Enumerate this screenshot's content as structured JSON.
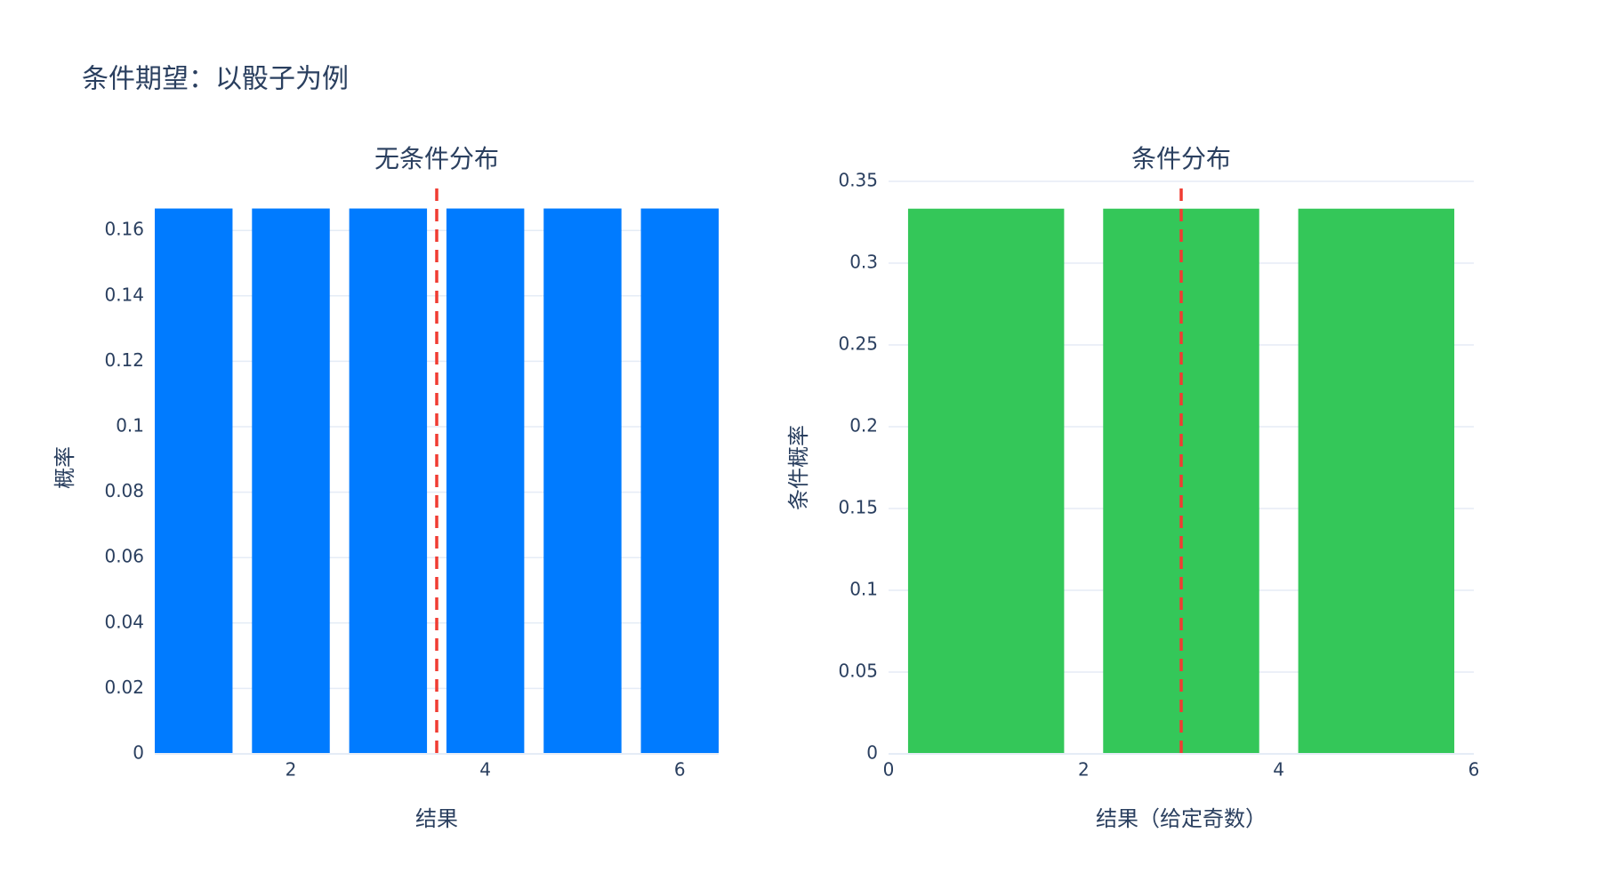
{
  "title": "条件期望：以骰子为例",
  "chart_data": [
    {
      "type": "bar",
      "title": "无条件分布",
      "x_label": "结果",
      "y_label": "概率",
      "x": [
        1,
        2,
        3,
        4,
        5,
        6
      ],
      "values": [
        0.1667,
        0.1667,
        0.1667,
        0.1667,
        0.1667,
        0.1667
      ],
      "color": "#007bff",
      "xlim": [
        0.6,
        6.4
      ],
      "xticks": [
        2,
        4,
        6
      ],
      "ylim": [
        0,
        0.175
      ],
      "yticks": [
        0,
        0.02,
        0.04,
        0.06,
        0.08,
        0.1,
        0.12,
        0.14,
        0.16
      ],
      "grid": true,
      "mean_line": {
        "x": 3.5,
        "color": "#f03c32"
      }
    },
    {
      "type": "bar",
      "title": "条件分布",
      "x_label": "结果（给定奇数）",
      "y_label": "条件概率",
      "x": [
        1,
        3,
        5
      ],
      "values": [
        0.3333,
        0.3333,
        0.3333
      ],
      "color": "#34c759",
      "xlim": [
        0,
        6
      ],
      "xticks": [
        0,
        2,
        4,
        6
      ],
      "ylim": [
        0,
        0.35
      ],
      "yticks": [
        0,
        0.05,
        0.1,
        0.15,
        0.2,
        0.25,
        0.3,
        0.35
      ],
      "grid": true,
      "mean_line": {
        "x": 3,
        "color": "#f03c32"
      }
    }
  ]
}
